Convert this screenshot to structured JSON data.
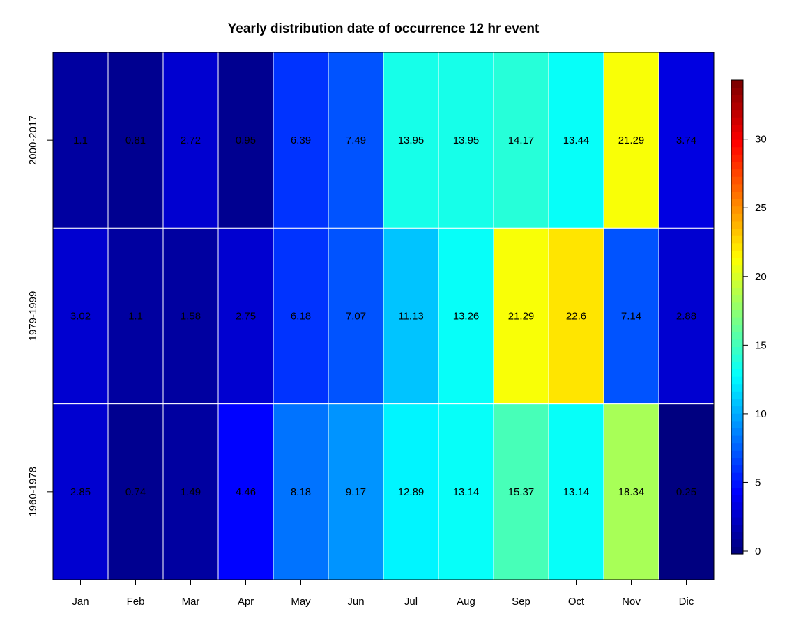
{
  "chart_data": {
    "type": "heatmap",
    "title": "Yearly distribution date of occurrence 12 hr event",
    "xlabel": "",
    "ylabel": "",
    "x_categories": [
      "Jan",
      "Feb",
      "Mar",
      "Apr",
      "May",
      "Jun",
      "Jul",
      "Aug",
      "Sep",
      "Oct",
      "Nov",
      "Dic"
    ],
    "y_categories": [
      "2000-2017",
      "1979-1999",
      "1960-1978"
    ],
    "values": [
      [
        1.1,
        0.81,
        2.72,
        0.95,
        6.39,
        7.49,
        13.95,
        13.95,
        14.17,
        13.44,
        21.29,
        3.74
      ],
      [
        3.02,
        1.1,
        1.58,
        2.75,
        6.18,
        7.07,
        11.13,
        13.26,
        21.29,
        22.6,
        7.14,
        2.88
      ],
      [
        2.85,
        0.74,
        1.49,
        4.46,
        8.18,
        9.17,
        12.89,
        13.14,
        15.37,
        13.14,
        18.34,
        0.25
      ]
    ],
    "value_labels": [
      [
        "1.1",
        "0.81",
        "2.72",
        "0.95",
        "6.39",
        "7.49",
        "13.95",
        "13.95",
        "14.17",
        "13.44",
        "21.29",
        "3.74"
      ],
      [
        "3.02",
        "1.1",
        "1.58",
        "2.75",
        "6.18",
        "7.07",
        "11.13",
        "13.26",
        "21.29",
        "22.6",
        "7.14",
        "2.88"
      ],
      [
        "2.85",
        "0.74",
        "1.49",
        "4.46",
        "8.18",
        "9.17",
        "12.89",
        "13.14",
        "15.37",
        "13.14",
        "18.34",
        "0.25"
      ]
    ],
    "colorscale": {
      "name": "jet",
      "range": [
        0,
        34.5
      ],
      "ticks": [
        0,
        5,
        10,
        15,
        20,
        25,
        30
      ],
      "tick_labels": [
        "0",
        "5",
        "10",
        "15",
        "20",
        "25",
        "30"
      ]
    },
    "grid": false,
    "legend_position": "right"
  }
}
